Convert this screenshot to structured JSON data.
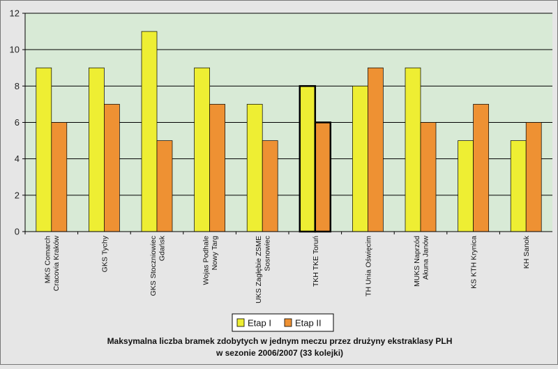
{
  "chart_data": {
    "type": "bar",
    "title": "",
    "caption_lines": [
      "Maksymalna liczba bramek zdobytych w jednym meczu przez drużyny ekstraklasy PLH",
      "w sezonie 2006/2007 (33 kolejki)"
    ],
    "xlabel": "",
    "ylabel": "",
    "ylim": [
      0,
      12
    ],
    "yticks": [
      "0",
      "2",
      "4",
      "6",
      "8",
      "10",
      "12"
    ],
    "grid": true,
    "legend_position": "bottom-center",
    "categories": [
      [
        "MKS Comarch",
        "Cracovia Kraków"
      ],
      [
        "GKS Tychy"
      ],
      [
        "GKS Stoczniowiec",
        "Gdańsk"
      ],
      [
        "Wojas Podhale",
        "Nowy Targ"
      ],
      [
        "UKS Zagłębie ZSME",
        "Sosnowiec"
      ],
      [
        "TKH TKE Toruń"
      ],
      [
        "TH Unia Oświęcim"
      ],
      [
        "MUKS Naprzód",
        "Akuna Janów"
      ],
      [
        "KS KTH Krynica"
      ],
      [
        "KH Sanok"
      ]
    ],
    "series": [
      {
        "name": "Etap I",
        "color": "#eeee33",
        "values": [
          9,
          9,
          11,
          9,
          7,
          8,
          8,
          9,
          5,
          5
        ]
      },
      {
        "name": "Etap II",
        "color": "#ee9133",
        "values": [
          6,
          7,
          5,
          7,
          5,
          6,
          9,
          6,
          7,
          6
        ]
      }
    ],
    "highlighted_category_index": 5,
    "colors": {
      "plot_background": "#d8ead6",
      "gridline": "#000000",
      "frame_background": "#e6e6e6"
    }
  }
}
